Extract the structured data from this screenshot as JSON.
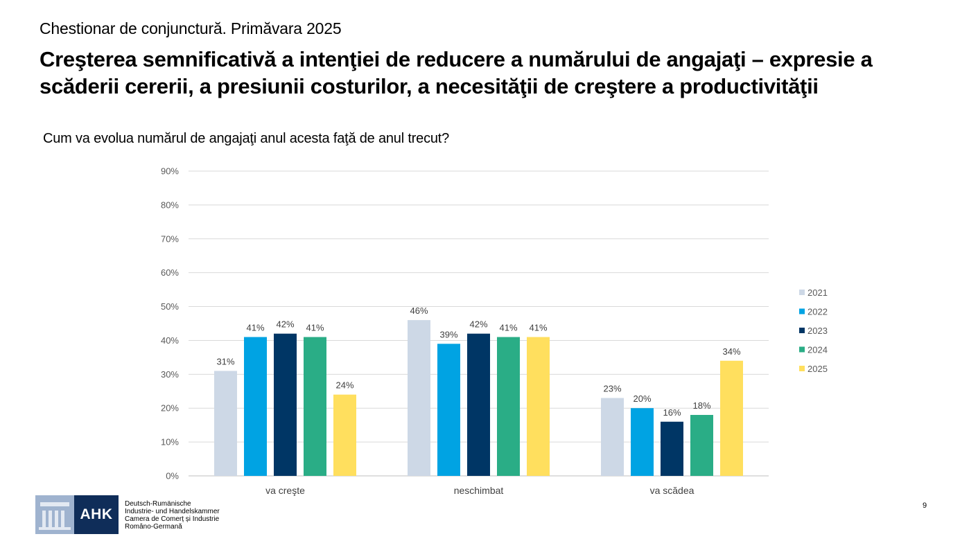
{
  "header": {
    "survey_title": "Chestionar de conjunctură. Primăvara 2025",
    "headline": "Creşterea semnificativă a intenţiei de reducere a numărului de angajaţi – expresie a scăderii cererii, a presiunii costurilor, a necesităţii de creştere a productivităţii",
    "question": "Cum va evolua numărul de angajaţi anul acesta faţă de anul trecut?"
  },
  "chart_data": {
    "type": "bar",
    "categories": [
      "va creşte",
      "neschimbat",
      "va scădea"
    ],
    "series": [
      {
        "name": "2021",
        "color": "#cdd8e6",
        "values": [
          31,
          46,
          23
        ],
        "labels": [
          "31%",
          "46%",
          "23%"
        ]
      },
      {
        "name": "2022",
        "color": "#00a3e3",
        "values": [
          41,
          39,
          20
        ],
        "labels": [
          "41%",
          "39%",
          "20%"
        ]
      },
      {
        "name": "2023",
        "color": "#003665",
        "values": [
          42,
          42,
          16
        ],
        "labels": [
          "42%",
          "42%",
          "16%"
        ]
      },
      {
        "name": "2024",
        "color": "#2aad86",
        "values": [
          41,
          41,
          18
        ],
        "labels": [
          "41%",
          "41%",
          "18%"
        ]
      },
      {
        "name": "2025",
        "color": "#ffdf5e",
        "values": [
          24,
          41,
          34
        ],
        "labels": [
          "24%",
          "41%",
          "34%"
        ]
      }
    ],
    "ylim": [
      0,
      90
    ],
    "yticks": [
      "0%",
      "10%",
      "20%",
      "30%",
      "40%",
      "50%",
      "60%",
      "70%",
      "80%",
      "90%"
    ],
    "grid": true,
    "legend": "right"
  },
  "footer": {
    "logo_text": "AHK",
    "org_lines": [
      "Deutsch-Rumänische",
      "Industrie- und Handelskammer",
      "Camera de Comerț și Industrie",
      "Româno-Germană"
    ],
    "page_number": "9"
  }
}
